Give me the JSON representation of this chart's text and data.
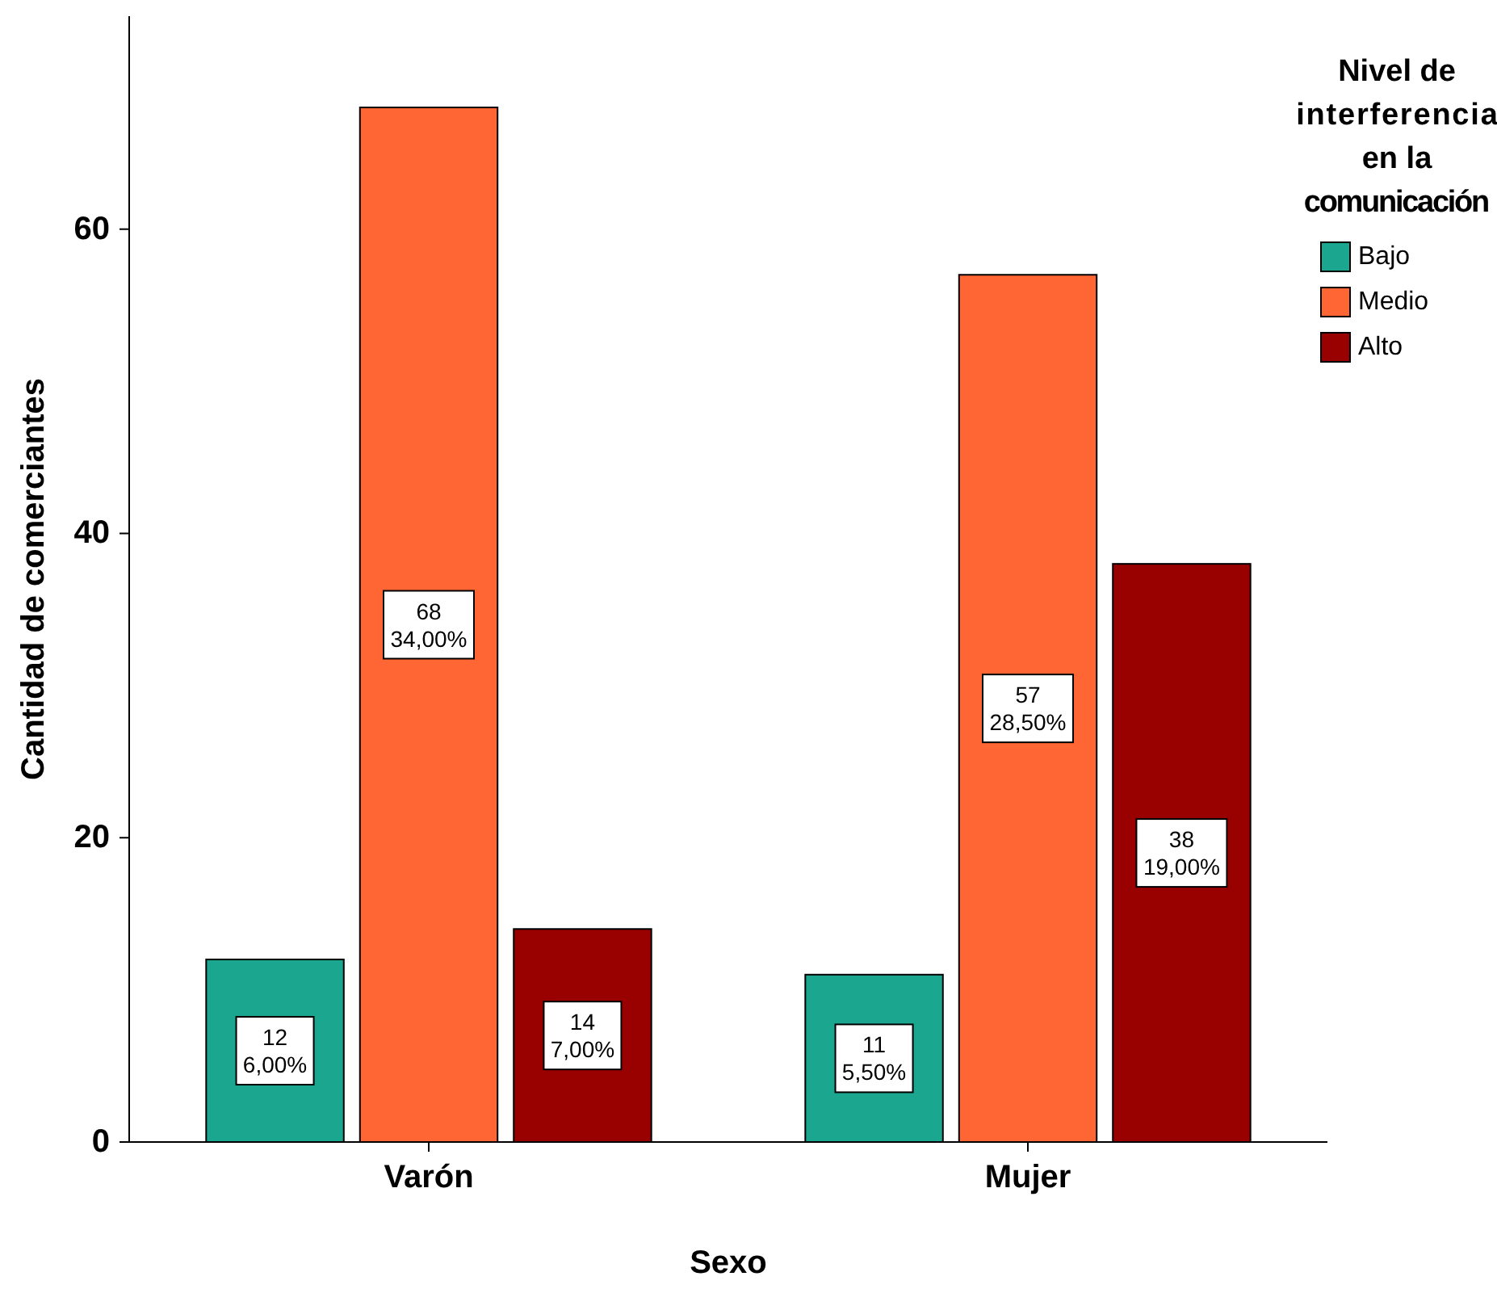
{
  "chart_data": {
    "type": "bar",
    "xlabel": "Sexo",
    "ylabel": "Cantidad de comerciantes",
    "legend_title": "Nivel de interferencia en la comunicación",
    "categories": [
      "Varón",
      "Mujer"
    ],
    "series": [
      {
        "name": "Bajo",
        "color": "#1aa68f",
        "values": [
          12,
          11
        ],
        "value_labels": [
          "12\n6,00%",
          "11\n5,50%"
        ]
      },
      {
        "name": "Medio",
        "color": "#ff6633",
        "values": [
          68,
          57
        ],
        "value_labels": [
          "68\n34,00%",
          "57\n28,50%"
        ]
      },
      {
        "name": "Alto",
        "color": "#990000",
        "values": [
          14,
          38
        ],
        "value_labels": [
          "14\n7,00%",
          "38\n19,00%"
        ]
      }
    ],
    "ylim": [
      0,
      74
    ],
    "yticks": [
      0,
      20,
      40,
      60
    ],
    "grid": false,
    "legend": "top right"
  }
}
